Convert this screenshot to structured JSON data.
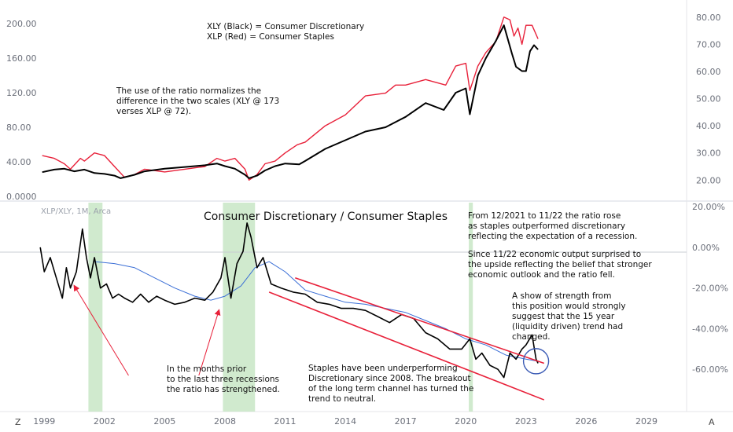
{
  "chart_data": [
    {
      "type": "line",
      "panel": "top",
      "left_axis_ticks": [
        "200.00",
        "160.00",
        "120.00",
        "80.00",
        "40.00",
        "0.0000"
      ],
      "right_axis_ticks": [
        "80.00",
        "70.00",
        "60.00",
        "50.00",
        "40.00",
        "30.00",
        "20.00"
      ],
      "legend_lines": [
        "XLY (Black) = Consumer Discretionary",
        "XLP (Red) = Consumer Staples"
      ],
      "annotation": [
        "The use of the ratio normalizes the",
        "difference in the two scales (XLY @ 173",
        "verses XLP @ 72)."
      ],
      "ylim_left": [
        0,
        220
      ],
      "ylim_right": [
        14,
        84
      ],
      "series": [
        {
          "name": "XLY (Black) = Consumer Discretionary",
          "color": "#000000",
          "axis": "left",
          "x": [
            1998.9,
            1999.5,
            2000.0,
            2000.5,
            2001.0,
            2001.5,
            2002.0,
            2002.5,
            2002.8,
            2003.5,
            2004.0,
            2005.0,
            2006.0,
            2007.0,
            2007.6,
            2008.0,
            2008.5,
            2009.0,
            2009.2,
            2009.6,
            2010.0,
            2010.5,
            2011.0,
            2011.7,
            2012.0,
            2013.0,
            2014.0,
            2015.0,
            2016.0,
            2017.0,
            2018.0,
            2018.9,
            2019.5,
            2020.0,
            2020.2,
            2020.6,
            2021.0,
            2021.5,
            2021.9,
            2022.3,
            2022.5,
            2022.8,
            2023.0,
            2023.2,
            2023.4,
            2023.6
          ],
          "values": [
            28,
            31,
            32,
            29,
            31,
            27,
            26,
            24,
            21,
            25,
            29,
            32,
            34,
            36,
            38,
            35,
            32,
            25,
            21,
            24,
            30,
            35,
            38,
            37,
            41,
            55,
            65,
            75,
            80,
            92,
            108,
            100,
            120,
            125,
            95,
            140,
            160,
            180,
            198,
            165,
            150,
            145,
            145,
            168,
            175,
            170
          ]
        },
        {
          "name": "XLP (Red) = Consumer Staples",
          "color": "#e8213a",
          "axis": "right",
          "x": [
            1998.9,
            1999.5,
            2000.0,
            2000.3,
            2000.8,
            2001.0,
            2001.5,
            2002.0,
            2002.5,
            2003.0,
            2003.5,
            2004.0,
            2005.0,
            2006.0,
            2007.0,
            2007.6,
            2008.0,
            2008.5,
            2009.0,
            2009.2,
            2009.6,
            2010.0,
            2010.5,
            2011.0,
            2011.6,
            2012.0,
            2013.0,
            2014.0,
            2015.0,
            2016.0,
            2016.5,
            2017.0,
            2018.0,
            2019.0,
            2019.5,
            2020.0,
            2020.2,
            2020.6,
            2021.0,
            2021.5,
            2021.9,
            2022.2,
            2022.4,
            2022.6,
            2022.8,
            2023.0,
            2023.3,
            2023.6
          ],
          "values": [
            29,
            28,
            26,
            24,
            28,
            27,
            30,
            29,
            25,
            21,
            22,
            24,
            23,
            24,
            25,
            28,
            27,
            28,
            24,
            20,
            22,
            26,
            27,
            30,
            33,
            34,
            40,
            44,
            51,
            52,
            55,
            55,
            57,
            55,
            62,
            63,
            53,
            62,
            67,
            71,
            80,
            79,
            73,
            76,
            70,
            77,
            77,
            72
          ]
        }
      ]
    },
    {
      "type": "line",
      "panel": "bottom",
      "symbol": "XLP/XLY, 1M, Arca",
      "title": "Consumer Discretionary / Consumer Staples",
      "right_axis_ticks": [
        "20.00%",
        "0.00%",
        "-20.00%",
        "-40.00%",
        "-60.00%"
      ],
      "ylim": [
        -80,
        22
      ],
      "x_ticks": [
        "1999",
        "2002",
        "2005",
        "2008",
        "2011",
        "2014",
        "2017",
        "2020",
        "2023",
        "2026",
        "2029"
      ],
      "xlim": [
        1997.5,
        2031.0
      ],
      "recession_bands": [
        [
          2001.2,
          2001.9
        ],
        [
          2007.9,
          2009.5
        ],
        [
          2020.15,
          2020.35
        ]
      ],
      "series": [
        {
          "color": "#000000",
          "x": [
            1998.8,
            1999.0,
            1999.3,
            1999.6,
            1999.9,
            2000.1,
            2000.3,
            2000.6,
            2000.9,
            2001.1,
            2001.3,
            2001.5,
            2001.8,
            2002.1,
            2002.4,
            2002.7,
            2003.0,
            2003.4,
            2003.8,
            2004.2,
            2004.6,
            2005.0,
            2005.5,
            2006.0,
            2006.5,
            2007.0,
            2007.4,
            2007.8,
            2008.0,
            2008.3,
            2008.6,
            2008.9,
            2009.1,
            2009.3,
            2009.6,
            2009.9,
            2010.3,
            2010.8,
            2011.4,
            2012.0,
            2012.6,
            2013.2,
            2013.8,
            2014.4,
            2015.0,
            2015.6,
            2016.2,
            2016.8,
            2017.4,
            2018.0,
            2018.6,
            2019.2,
            2019.8,
            2020.2,
            2020.5,
            2020.8,
            2021.2,
            2021.6,
            2021.9,
            2022.2,
            2022.5,
            2022.8,
            2023.0,
            2023.3,
            2023.5,
            2023.6
          ],
          "values": [
            0,
            -12,
            -5,
            -15,
            -25,
            -10,
            -20,
            -12,
            9,
            -5,
            -15,
            -5,
            -20,
            -18,
            -25,
            -23,
            -25,
            -27,
            -23,
            -27,
            -24,
            -26,
            -28,
            -27,
            -25,
            -26,
            -22,
            -15,
            -5,
            -25,
            -8,
            -2,
            12,
            5,
            -10,
            -5,
            -18,
            -20,
            -22,
            -23,
            -27,
            -28,
            -30,
            -30,
            -31,
            -34,
            -37,
            -33,
            -35,
            -42,
            -45,
            -50,
            -50,
            -45,
            -55,
            -52,
            -58,
            -60,
            -64,
            -52,
            -55,
            -50,
            -48,
            -43,
            -55,
            -57
          ]
        },
        {
          "color": "#3b6fd6",
          "x": [
            2001.5,
            2002.5,
            2003.5,
            2004.5,
            2005.5,
            2006.5,
            2007.3,
            2008.0,
            2008.8,
            2009.5,
            2010.2,
            2011.0,
            2012.0,
            2013.0,
            2014.0,
            2015.0,
            2016.0,
            2017.0,
            2018.0,
            2019.0,
            2020.0,
            2021.0,
            2022.0,
            2023.0,
            2023.6
          ],
          "values": [
            -7,
            -8,
            -10,
            -15,
            -20,
            -24,
            -26,
            -24,
            -19,
            -10,
            -7,
            -12,
            -21,
            -24,
            -27,
            -28,
            -30,
            -32,
            -36,
            -40,
            -45,
            -48,
            -53,
            -55,
            -56
          ]
        }
      ],
      "channel_upper": {
        "x": [
          2011.5,
          2023.9
        ],
        "values": [
          -15,
          -57
        ]
      },
      "channel_lower": {
        "x": [
          2010.2,
          2023.9
        ],
        "values": [
          -22,
          -75
        ]
      },
      "circle_marker": {
        "x": 2023.5,
        "value": -56
      },
      "annotations": [
        {
          "lines": [
            "In the months prior",
            "to the last three recessions",
            "the ratio has strengthened."
          ]
        },
        {
          "lines": [
            "Staples have been underperforming",
            "Discretionary since 2008. The breakout",
            "of the long term channel has turned the",
            "trend to neutral."
          ]
        },
        {
          "lines": [
            "From 12/2021 to 11/22 the ratio rose",
            "as staples outperformed discretionary",
            "reflecting the expectation of a recession.",
            "",
            "Since 11/22 economic output surprised to",
            "the upside reflecting the belief that stronger",
            "economic outlook and the ratio fell."
          ]
        },
        {
          "lines": [
            "A show of strength from",
            "this position would strongly",
            "suggest that the 15 year",
            "(liquidity driven) trend had",
            "changed."
          ]
        }
      ]
    }
  ],
  "corner_left": "Z",
  "corner_right": "A"
}
